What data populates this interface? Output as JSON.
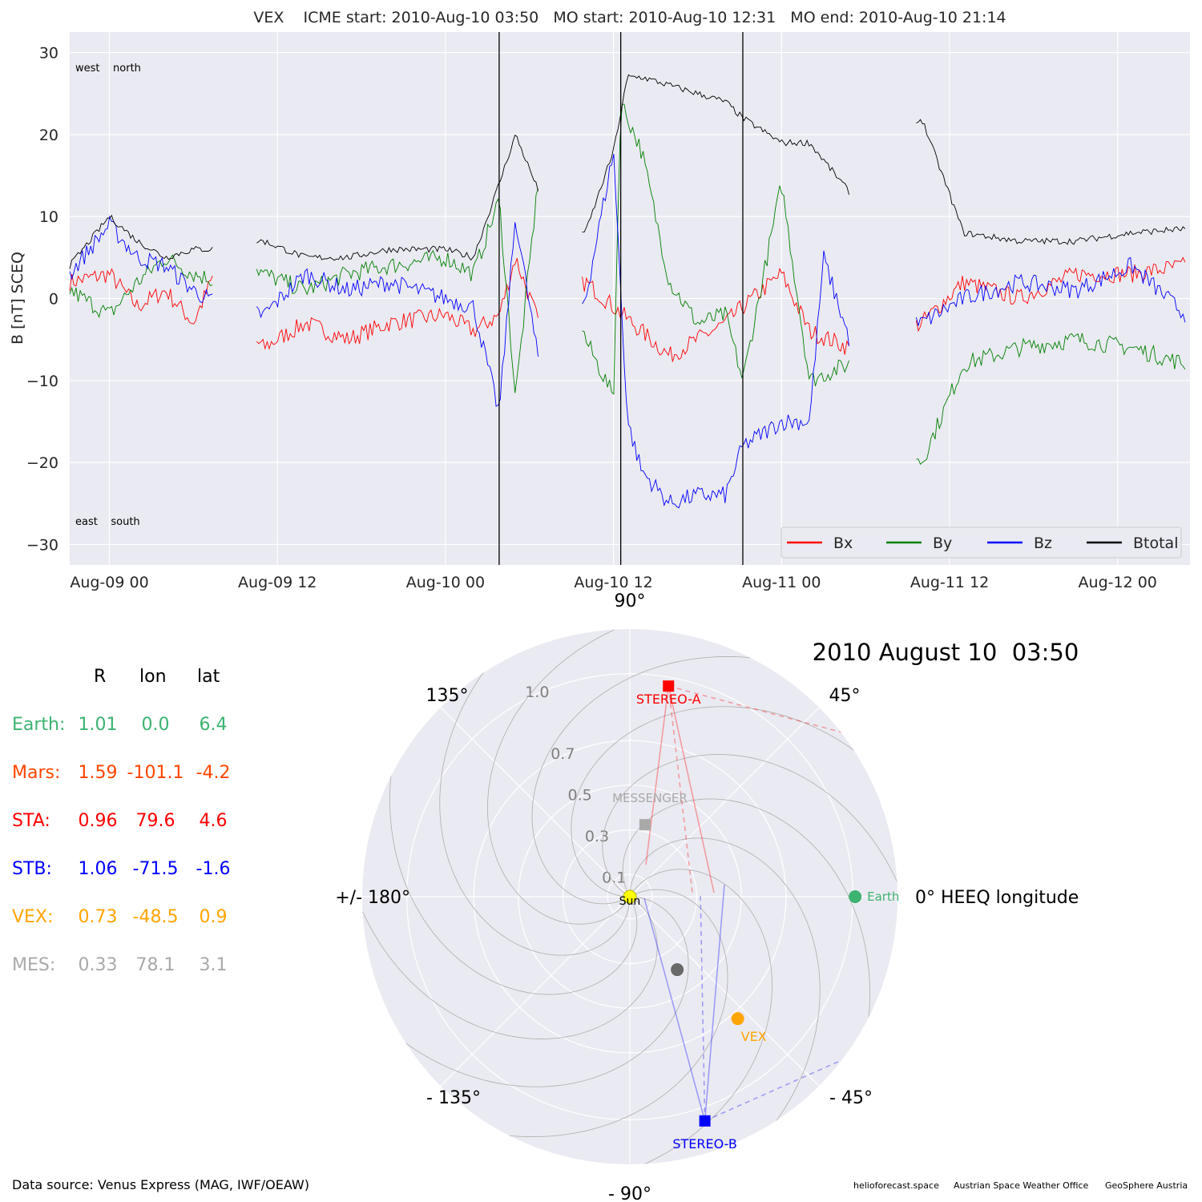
{
  "chart_data": [
    {
      "type": "line",
      "title": "VEX    ICME start: 2010-Aug-10 03:50   MO start: 2010-Aug-10 12:31   MO end: 2010-Aug-10 21:14",
      "ylabel": "B [nT] SCEQ",
      "xlabel": "",
      "ylim": [
        -32.5,
        32.5
      ],
      "yticks": [
        30,
        20,
        10,
        0,
        -10,
        -20,
        -30
      ],
      "ytick_labels": [
        "30",
        "20",
        "10",
        "0",
        "−10",
        "−20",
        "−30"
      ],
      "x_axis_hours": {
        "start": "2010-08-08 21:10",
        "end": "2010-08-12 05:10"
      },
      "xticks": [
        "Aug-09 00",
        "Aug-09 12",
        "Aug-10 00",
        "Aug-10 12",
        "Aug-11 00",
        "Aug-11 12",
        "Aug-12 00"
      ],
      "vlines": [
        "2010-08-10 03:50",
        "2010-08-10 12:31",
        "2010-08-10 21:14"
      ],
      "corner_labels": {
        "top": "west    north",
        "bottom": "east    south"
      },
      "legend_placement": "lower-right",
      "grid": true,
      "series": [
        {
          "name": "Bx",
          "color": "#ff0000",
          "points": [
            [
              "2010-08-08 21:10",
              2
            ],
            [
              "2010-08-09 00:00",
              3
            ],
            [
              "2010-08-09 02:00",
              -1
            ],
            [
              "2010-08-09 04:00",
              1
            ],
            [
              "2010-08-09 06:00",
              -3
            ],
            [
              "2010-08-09 08:00",
              5
            ],
            [
              "2010-08-09 09:00",
              -3
            ],
            [
              "2010-08-09 11:00",
              -6
            ],
            [
              "2010-08-09 14:00",
              -3
            ],
            [
              "2010-08-09 17:00",
              -5
            ],
            [
              "2010-08-09 20:00",
              -3
            ],
            [
              "2010-08-10 00:00",
              -2
            ],
            [
              "2010-08-10 02:00",
              -4
            ],
            [
              "2010-08-10 03:50",
              -2
            ],
            [
              "2010-08-10 05:00",
              5
            ],
            [
              "2010-08-10 06:40",
              -3
            ],
            [
              "2010-08-10 10:00",
              2
            ],
            [
              "2010-08-10 12:00",
              -1
            ],
            [
              "2010-08-10 14:00",
              -4
            ],
            [
              "2010-08-10 16:00",
              -7
            ],
            [
              "2010-08-10 18:00",
              -5
            ],
            [
              "2010-08-10 20:00",
              -3
            ],
            [
              "2010-08-10 21:14",
              -1
            ],
            [
              "2010-08-11 00:00",
              3
            ],
            [
              "2010-08-11 02:00",
              -4
            ],
            [
              "2010-08-11 04:50",
              -6
            ],
            [
              "2010-08-11 10:00",
              -3
            ],
            [
              "2010-08-11 13:00",
              2
            ],
            [
              "2010-08-11 17:00",
              0
            ],
            [
              "2010-08-11 21:00",
              3
            ],
            [
              "2010-08-12 01:00",
              3
            ],
            [
              "2010-08-12 04:50",
              4
            ]
          ]
        },
        {
          "name": "By",
          "color": "#008000",
          "points": [
            [
              "2010-08-08 21:10",
              1
            ],
            [
              "2010-08-09 00:00",
              -2
            ],
            [
              "2010-08-09 02:00",
              2
            ],
            [
              "2010-08-09 04:00",
              5
            ],
            [
              "2010-08-09 06:00",
              3
            ],
            [
              "2010-08-09 08:00",
              2
            ],
            [
              "2010-08-09 09:00",
              6
            ],
            [
              "2010-08-09 11:00",
              3
            ],
            [
              "2010-08-09 14:00",
              1
            ],
            [
              "2010-08-09 17:00",
              3
            ],
            [
              "2010-08-09 20:00",
              4
            ],
            [
              "2010-08-10 00:00",
              5
            ],
            [
              "2010-08-10 02:00",
              3
            ],
            [
              "2010-08-10 03:50",
              12
            ],
            [
              "2010-08-10 05:00",
              -12
            ],
            [
              "2010-08-10 06:40",
              15
            ],
            [
              "2010-08-10 10:00",
              -5
            ],
            [
              "2010-08-10 12:00",
              -12
            ],
            [
              "2010-08-10 12:31",
              24
            ],
            [
              "2010-08-10 14:00",
              18
            ],
            [
              "2010-08-10 16:00",
              2
            ],
            [
              "2010-08-10 18:00",
              -3
            ],
            [
              "2010-08-10 20:00",
              -2
            ],
            [
              "2010-08-10 21:14",
              -10
            ],
            [
              "2010-08-11 00:00",
              14
            ],
            [
              "2010-08-11 02:00",
              -10
            ],
            [
              "2010-08-11 04:50",
              -8
            ],
            [
              "2010-08-11 10:00",
              -20
            ],
            [
              "2010-08-11 13:00",
              -8
            ],
            [
              "2010-08-11 17:00",
              -6
            ],
            [
              "2010-08-11 21:00",
              -5
            ],
            [
              "2010-08-12 01:00",
              -6
            ],
            [
              "2010-08-12 04:50",
              -8
            ]
          ]
        },
        {
          "name": "Bz",
          "color": "#0000ff",
          "points": [
            [
              "2010-08-08 21:10",
              3
            ],
            [
              "2010-08-09 00:00",
              9
            ],
            [
              "2010-08-09 02:00",
              5
            ],
            [
              "2010-08-09 04:00",
              4
            ],
            [
              "2010-08-09 06:00",
              1
            ],
            [
              "2010-08-09 08:00",
              -1
            ],
            [
              "2010-08-09 09:00",
              -1
            ],
            [
              "2010-08-09 11:00",
              -2
            ],
            [
              "2010-08-09 14:00",
              3
            ],
            [
              "2010-08-09 17:00",
              1
            ],
            [
              "2010-08-09 20:00",
              2
            ],
            [
              "2010-08-10 00:00",
              0
            ],
            [
              "2010-08-10 02:00",
              -1
            ],
            [
              "2010-08-10 03:50",
              -14
            ],
            [
              "2010-08-10 05:00",
              10
            ],
            [
              "2010-08-10 06:40",
              -8
            ],
            [
              "2010-08-10 10:00",
              0
            ],
            [
              "2010-08-10 12:00",
              18
            ],
            [
              "2010-08-10 13:00",
              -15
            ],
            [
              "2010-08-10 14:00",
              -21
            ],
            [
              "2010-08-10 16:00",
              -25
            ],
            [
              "2010-08-10 18:00",
              -24
            ],
            [
              "2010-08-10 20:00",
              -24
            ],
            [
              "2010-08-10 21:14",
              -18
            ],
            [
              "2010-08-11 00:00",
              -15
            ],
            [
              "2010-08-11 02:00",
              -15
            ],
            [
              "2010-08-11 03:00",
              5
            ],
            [
              "2010-08-11 04:50",
              -5
            ],
            [
              "2010-08-11 10:00",
              -3
            ],
            [
              "2010-08-11 13:00",
              0
            ],
            [
              "2010-08-11 17:00",
              2
            ],
            [
              "2010-08-11 21:00",
              1
            ],
            [
              "2010-08-12 01:00",
              4
            ],
            [
              "2010-08-12 04:50",
              -2
            ]
          ]
        },
        {
          "name": "Btotal",
          "color": "#000000",
          "points": [
            [
              "2010-08-08 21:10",
              4
            ],
            [
              "2010-08-09 00:00",
              10
            ],
            [
              "2010-08-09 02:00",
              7
            ],
            [
              "2010-08-09 04:00",
              5
            ],
            [
              "2010-08-09 06:00",
              6
            ],
            [
              "2010-08-09 08:00",
              6
            ],
            [
              "2010-08-09 09:00",
              7
            ],
            [
              "2010-08-09 11:00",
              7
            ],
            [
              "2010-08-09 14:00",
              5
            ],
            [
              "2010-08-09 17:00",
              5
            ],
            [
              "2010-08-09 20:00",
              6
            ],
            [
              "2010-08-10 00:00",
              6
            ],
            [
              "2010-08-10 02:00",
              5
            ],
            [
              "2010-08-10 03:50",
              14
            ],
            [
              "2010-08-10 05:00",
              20
            ],
            [
              "2010-08-10 06:40",
              13
            ],
            [
              "2010-08-10 10:00",
              8
            ],
            [
              "2010-08-10 12:00",
              18
            ],
            [
              "2010-08-10 13:00",
              27
            ],
            [
              "2010-08-10 14:00",
              27
            ],
            [
              "2010-08-10 16:00",
              26
            ],
            [
              "2010-08-10 18:00",
              25
            ],
            [
              "2010-08-10 20:00",
              24
            ],
            [
              "2010-08-10 21:14",
              22
            ],
            [
              "2010-08-11 00:00",
              19
            ],
            [
              "2010-08-11 02:00",
              19
            ],
            [
              "2010-08-11 04:50",
              13
            ],
            [
              "2010-08-11 10:00",
              22
            ],
            [
              "2010-08-11 13:00",
              8
            ],
            [
              "2010-08-11 17:00",
              7
            ],
            [
              "2010-08-11 21:00",
              7
            ],
            [
              "2010-08-12 01:00",
              8
            ],
            [
              "2010-08-12 04:50",
              8.5
            ]
          ]
        }
      ],
      "gaps": [
        [
          "2010-08-09 07:30",
          "2010-08-09 10:30"
        ],
        [
          "2010-08-10 06:40",
          "2010-08-10 09:40"
        ],
        [
          "2010-08-11 04:50",
          "2010-08-11 09:30"
        ]
      ]
    },
    {
      "type": "scatter",
      "subtype": "polar",
      "title": "2010 August 10  03:50",
      "radial_ticks": [
        "0.1",
        "0.3",
        "0.5",
        "0.7",
        "1.0"
      ],
      "radial_values": [
        0.1,
        0.3,
        0.5,
        0.7,
        1.0
      ],
      "rmax": 1.2,
      "angle_labels": [
        {
          "deg": 90,
          "text": "90°"
        },
        {
          "deg": 45,
          "text": "45°"
        },
        {
          "deg": 0,
          "text": "0° HEEQ longitude"
        },
        {
          "deg": -45,
          "text": "- 45°"
        },
        {
          "deg": -90,
          "text": "- 90°"
        },
        {
          "deg": -135,
          "text": "- 135°"
        },
        {
          "deg": 180,
          "text": "+/- 180°"
        },
        {
          "deg": 135,
          "text": "135°"
        }
      ],
      "bodies": [
        {
          "name": "Sun",
          "label": "Sun",
          "r": 0.0,
          "lon": 0.0,
          "color": "#ffff00",
          "marker": "circle"
        },
        {
          "name": "Earth",
          "label": "Earth",
          "r": 1.01,
          "lon": 0.0,
          "color": "#3cb371",
          "marker": "circle"
        },
        {
          "name": "STEREO-A",
          "label": "STEREO-A",
          "r": 0.96,
          "lon": 79.6,
          "color": "#ff0000",
          "marker": "square"
        },
        {
          "name": "STEREO-B",
          "label": "STEREO-B",
          "r": 1.06,
          "lon": -71.5,
          "color": "#0000ff",
          "marker": "square"
        },
        {
          "name": "VEX",
          "label": "VEX",
          "r": 0.73,
          "lon": -48.5,
          "color": "#ffa500",
          "marker": "circle"
        },
        {
          "name": "MESSENGER",
          "label": "MESSENGER",
          "r": 0.33,
          "lon": 78.1,
          "color": "#a9a9a9",
          "marker": "square"
        },
        {
          "name": "Mercury",
          "label": "",
          "r": 0.39,
          "lon": -57.0,
          "color": "#696969",
          "marker": "circle"
        }
      ]
    }
  ],
  "position_table": {
    "headers": [
      "R",
      "lon",
      "lat"
    ],
    "rows": [
      {
        "name": "Earth:",
        "R": "1.01",
        "lon": "0.0",
        "lat": "6.4",
        "color": "#3cb371"
      },
      {
        "name": "Mars:",
        "R": "1.59",
        "lon": "-101.1",
        "lat": "-4.2",
        "color": "#ff4500"
      },
      {
        "name": "STA:",
        "R": "0.96",
        "lon": "79.6",
        "lat": "4.6",
        "color": "#ff0000"
      },
      {
        "name": "STB:",
        "R": "1.06",
        "lon": "-71.5",
        "lat": "-1.6",
        "color": "#0000ff"
      },
      {
        "name": "VEX:",
        "R": "0.73",
        "lon": "-48.5",
        "lat": "0.9",
        "color": "#ffa500"
      },
      {
        "name": "MES:",
        "R": "0.33",
        "lon": "78.1",
        "lat": "3.1",
        "color": "#a9a9a9"
      }
    ]
  },
  "footer": {
    "source": "Data source: Venus Express (MAG, IWF/OEAW)",
    "credits": [
      "helioforecast.space",
      "Austrian Space Weather Office",
      "GeoSphere Austria"
    ]
  }
}
